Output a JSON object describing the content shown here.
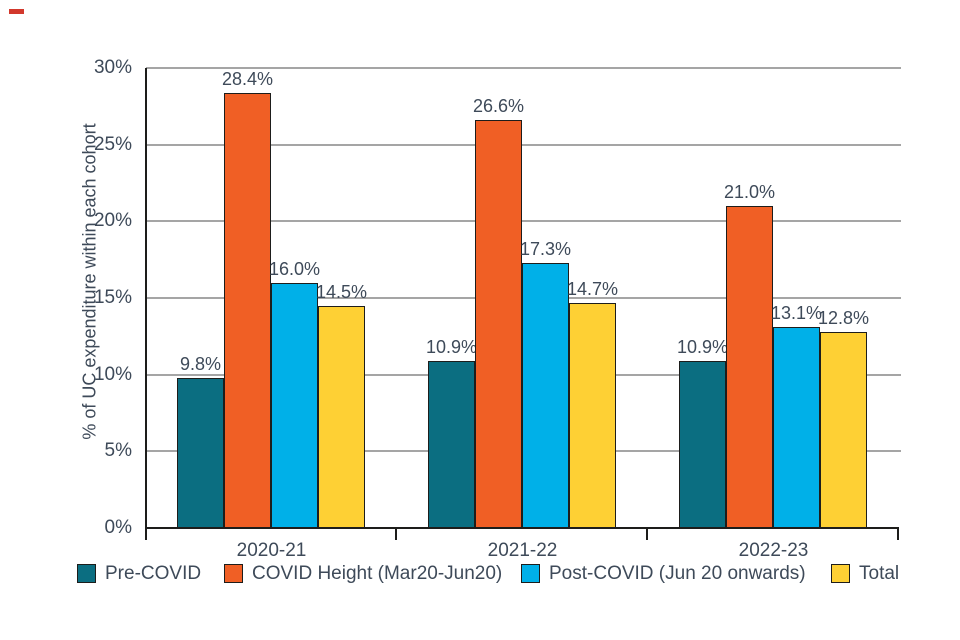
{
  "brand_mark": {
    "color": "#d2382c"
  },
  "chart_data": {
    "type": "bar",
    "title": "",
    "ylabel": "% of UC expenditure within each cohort",
    "xlabel": "",
    "categories": [
      "2020-21",
      "2021-22",
      "2022-23"
    ],
    "series": [
      {
        "name": "Pre-COVID",
        "color": "#0b6e81",
        "values": [
          9.8,
          10.9,
          10.9
        ]
      },
      {
        "name": "COVID Height (Mar20-Jun20)",
        "color": "#f05f25",
        "values": [
          28.4,
          26.6,
          21.0
        ]
      },
      {
        "name": "Post-COVID (Jun 20 onwards)",
        "color": "#00b0e8",
        "values": [
          16.0,
          17.3,
          13.1
        ]
      },
      {
        "name": "Total",
        "color": "#fed034",
        "values": [
          14.5,
          14.7,
          12.8
        ]
      }
    ],
    "value_label_format": "{value}%",
    "yticks": [
      0,
      5,
      10,
      15,
      20,
      25,
      30
    ],
    "ytick_format": "{value}%",
    "ylim": [
      0,
      30
    ],
    "grid": true,
    "legend_position": "bottom",
    "bar_outline_color": "#1d1d1b",
    "grid_color": "#a5a5a5",
    "axis_color": "#1d1d1b",
    "text_color": "#3e4a59"
  }
}
